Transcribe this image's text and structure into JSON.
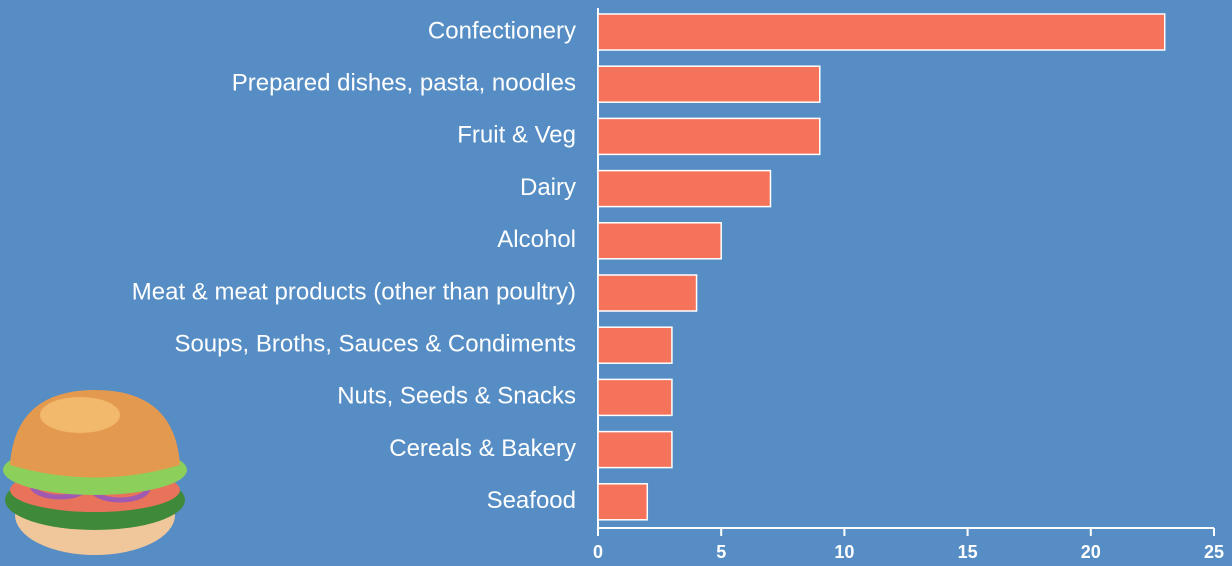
{
  "chart_data": {
    "type": "bar",
    "orientation": "horizontal",
    "categories": [
      "Confectionery",
      "Prepared dishes, pasta, noodles",
      "Fruit & Veg",
      "Dairy",
      "Alcohol",
      "Meat & meat products (other than poultry)",
      "Soups, Broths, Sauces & Condiments",
      "Nuts, Seeds & Snacks",
      "Cereals & Bakery",
      "Seafood"
    ],
    "values": [
      23,
      9,
      9,
      7,
      5,
      4,
      3,
      3,
      3,
      2
    ],
    "color": "#f4735a",
    "xlim": [
      0,
      25
    ],
    "xticks": [
      0,
      5,
      10,
      15,
      20,
      25
    ],
    "grid": false
  }
}
